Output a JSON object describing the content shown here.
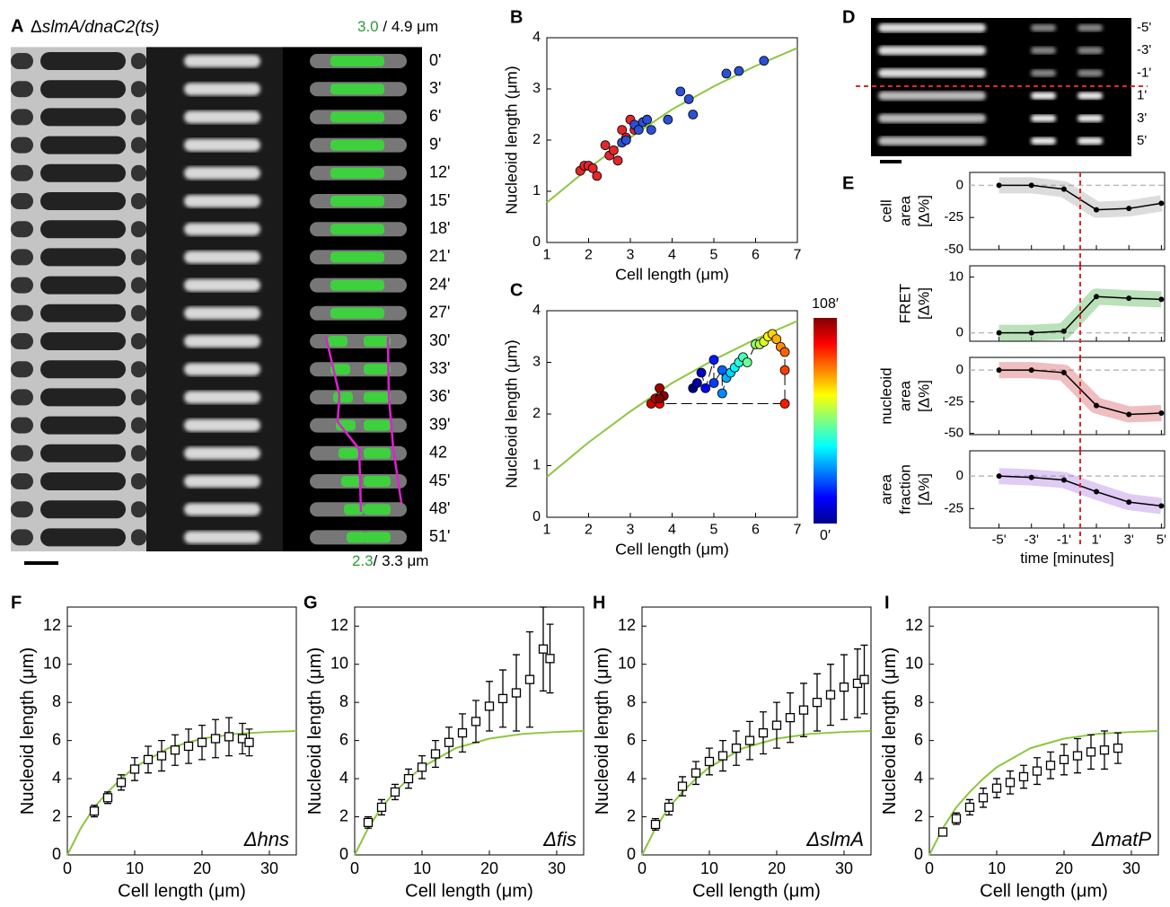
{
  "panel_a": {
    "label": "A",
    "title_prefix": "Δ",
    "title_name": "slmA/dnaC2(ts)",
    "top_green": "3.0",
    "top_rest": "/ 4.9 μm",
    "bottom_green": "2.3",
    "bottom_rest": "/ 3.3 μm",
    "times": [
      "0'",
      "3'",
      "6'",
      "9'",
      "12'",
      "15'",
      "18'",
      "21'",
      "24'",
      "27'",
      "30'",
      "33'",
      "36'",
      "39'",
      "42",
      "45'",
      "48'",
      "51'"
    ]
  },
  "panel_d": {
    "label": "D",
    "times": [
      "-5'",
      "-3'",
      "-1'",
      "1'",
      "3'",
      "5'"
    ]
  },
  "chart_data": [
    {
      "label": "B",
      "type": "scatter",
      "xlabel": "Cell length (μm)",
      "ylabel": "Nucleoid length (μm)",
      "xlim": [
        1,
        7
      ],
      "ylim": [
        0,
        4
      ],
      "xticks": [
        1,
        2,
        3,
        4,
        5,
        6,
        7
      ],
      "yticks": [
        0,
        1,
        2,
        3,
        4
      ],
      "series": [
        {
          "color": "#e3262b",
          "x": [
            1.8,
            1.9,
            2.0,
            2.1,
            2.2,
            2.4,
            2.5,
            2.6,
            2.7,
            2.8,
            2.9,
            3.0,
            3.1
          ],
          "y": [
            1.4,
            1.5,
            1.5,
            1.45,
            1.3,
            1.9,
            1.7,
            1.8,
            1.6,
            2.2,
            2.05,
            2.4,
            2.2
          ]
        },
        {
          "color": "#2b4fd6",
          "x": [
            2.8,
            2.9,
            3.1,
            3.2,
            3.3,
            3.4,
            3.5,
            3.9,
            4.2,
            4.4,
            4.5,
            5.3,
            5.6,
            6.2
          ],
          "y": [
            1.95,
            2.0,
            2.3,
            2.2,
            2.35,
            2.4,
            2.2,
            2.4,
            2.95,
            2.8,
            2.5,
            3.3,
            3.35,
            3.55
          ]
        }
      ],
      "curve": {
        "color": "#8dc63f",
        "x": [
          1,
          2,
          3,
          4,
          5,
          6,
          7
        ],
        "y": [
          0.78,
          1.45,
          2.05,
          2.6,
          3.05,
          3.45,
          3.8
        ]
      }
    },
    {
      "label": "C",
      "type": "colorscatter",
      "xlabel": "Cell length (μm)",
      "ylabel": "Nucleoid length (μm)",
      "xlim": [
        1,
        7
      ],
      "ylim": [
        0,
        4
      ],
      "xticks": [
        1,
        2,
        3,
        4,
        5,
        6,
        7
      ],
      "yticks": [
        0,
        1,
        2,
        3,
        4
      ],
      "clim": [
        0,
        108
      ],
      "colorbar_max_label": "108′",
      "colorbar_min_label": "0′",
      "x": [
        4.5,
        4.6,
        4.7,
        4.8,
        5.0,
        5.0,
        5.2,
        5.2,
        5.3,
        5.4,
        5.5,
        5.6,
        5.7,
        5.8,
        6.0,
        6.1,
        6.2,
        6.3,
        6.4,
        6.5,
        6.6,
        6.7,
        6.7,
        6.7,
        3.7,
        3.5,
        3.6,
        3.7,
        3.8,
        3.7
      ],
      "y": [
        2.5,
        2.6,
        2.8,
        2.5,
        3.05,
        2.6,
        2.85,
        2.4,
        2.7,
        2.8,
        2.9,
        3.0,
        3.1,
        3.0,
        3.35,
        3.35,
        3.4,
        3.5,
        3.55,
        3.45,
        3.3,
        3.2,
        2.85,
        2.2,
        2.2,
        2.2,
        2.3,
        2.5,
        2.35,
        2.3
      ],
      "t": [
        0,
        4,
        8,
        12,
        16,
        20,
        24,
        28,
        32,
        36,
        40,
        44,
        48,
        52,
        56,
        60,
        64,
        68,
        72,
        76,
        80,
        84,
        88,
        92,
        96,
        100,
        102,
        104,
        106,
        108
      ],
      "curve": {
        "color": "#8dc63f",
        "x": [
          1,
          2,
          3,
          4,
          5,
          6,
          7
        ],
        "y": [
          0.78,
          1.45,
          2.05,
          2.6,
          3.05,
          3.45,
          3.8
        ]
      }
    },
    {
      "label": "E",
      "type": "line",
      "ylabel": [
        "cell",
        "area",
        "[Δ%]"
      ],
      "x": [
        -5,
        -3,
        -1,
        1,
        3,
        5
      ],
      "values": [
        0,
        0,
        -3,
        -19,
        -18,
        -14
      ],
      "color": "#000000",
      "band_color": "#9a9a9a",
      "xlim": [
        -6.8,
        5.2
      ],
      "ylim": [
        -50,
        10
      ],
      "yticks": [
        -50,
        -25,
        0
      ]
    },
    {
      "type": "line",
      "ylabel": [
        "FRET",
        "[Δ%]"
      ],
      "x": [
        -5,
        -3,
        -1,
        1,
        3,
        5
      ],
      "values": [
        0,
        0,
        0.3,
        6.5,
        6.2,
        6
      ],
      "color": "#000000",
      "band_color": "#3aa83a",
      "xlim": [
        -6.8,
        5.2
      ],
      "ylim": [
        -1.5,
        12
      ],
      "yticks": [
        0,
        10
      ]
    },
    {
      "type": "line",
      "ylabel": [
        "nucleoid",
        "area",
        "[Δ%]"
      ],
      "x": [
        -5,
        -3,
        -1,
        1,
        3,
        5
      ],
      "values": [
        0,
        0,
        -2,
        -28,
        -35,
        -34
      ],
      "color": "#000000",
      "band_color": "#d0454a",
      "xlim": [
        -6.8,
        5.2
      ],
      "ylim": [
        -51,
        10
      ],
      "yticks": [
        -50,
        -25,
        0
      ]
    },
    {
      "type": "line",
      "ylabel": [
        "area",
        "fraction",
        "[Δ%]"
      ],
      "x": [
        -5,
        -3,
        -1,
        1,
        3,
        5
      ],
      "values": [
        0,
        -1,
        -3,
        -12,
        -20,
        -23
      ],
      "color": "#000000",
      "band_color": "#a46be0",
      "xlim": [
        -6.8,
        5.2
      ],
      "ylim": [
        -40,
        19.5
      ],
      "yticks": [
        -25,
        0
      ],
      "xticks": [
        {
          "value": -5,
          "label": "-5'"
        },
        {
          "value": -3,
          "label": "-3'"
        },
        {
          "value": -1,
          "label": "-1'"
        },
        {
          "value": 1,
          "label": "1'"
        },
        {
          "value": 3,
          "label": "3'"
        },
        {
          "value": 5,
          "label": "5'"
        }
      ],
      "xlabel": "time [minutes]"
    },
    {
      "label": "F",
      "type": "errorbar",
      "annotation": "Δhns",
      "xlabel": "Cell length (μm)",
      "ylabel": "Nucleoid length (μm)",
      "xlim": [
        0,
        34
      ],
      "ylim": [
        0,
        13
      ],
      "xticks": [
        0,
        10,
        20,
        30
      ],
      "yticks": [
        0,
        2,
        4,
        6,
        8,
        10,
        12
      ],
      "x": [
        4,
        6,
        8,
        10,
        12,
        14,
        16,
        18,
        20,
        22,
        24,
        26,
        27
      ],
      "values": [
        2.3,
        3.0,
        3.8,
        4.5,
        5.0,
        5.2,
        5.5,
        5.7,
        5.9,
        6.1,
        6.2,
        6.1,
        5.9
      ],
      "errors": [
        0.3,
        0.3,
        0.4,
        0.6,
        0.7,
        0.8,
        0.8,
        0.9,
        0.9,
        1.0,
        1.0,
        0.8,
        0.7
      ],
      "curve": {
        "color": "#8dc63f",
        "x": [
          0,
          2,
          4,
          6,
          8,
          10,
          15,
          20,
          25,
          30,
          34
        ],
        "y": [
          0,
          1.4,
          2.5,
          3.3,
          4.0,
          4.6,
          5.6,
          6.1,
          6.35,
          6.45,
          6.5
        ]
      }
    },
    {
      "label": "G",
      "type": "errorbar",
      "annotation": "Δfis",
      "xlabel": "Cell length (μm)",
      "ylabel": "Nucleoid length (μm)",
      "xlim": [
        0,
        34
      ],
      "ylim": [
        0,
        13
      ],
      "xticks": [
        0,
        10,
        20,
        30
      ],
      "yticks": [
        0,
        2,
        4,
        6,
        8,
        10,
        12
      ],
      "x": [
        2,
        4,
        6,
        8,
        10,
        12,
        14,
        16,
        18,
        20,
        22,
        24,
        26,
        28,
        29
      ],
      "values": [
        1.7,
        2.5,
        3.3,
        4.0,
        4.6,
        5.3,
        5.9,
        6.4,
        7.0,
        7.8,
        8.2,
        8.5,
        9.2,
        10.8,
        10.3
      ],
      "errors": [
        0.3,
        0.4,
        0.4,
        0.5,
        0.6,
        0.7,
        0.8,
        1.0,
        1.1,
        1.3,
        1.5,
        2.0,
        2.5,
        2.2,
        1.8
      ],
      "curve": {
        "color": "#8dc63f",
        "x": [
          0,
          2,
          4,
          6,
          8,
          10,
          15,
          20,
          25,
          30,
          34
        ],
        "y": [
          0,
          1.4,
          2.5,
          3.3,
          4.0,
          4.6,
          5.6,
          6.1,
          6.35,
          6.45,
          6.5
        ]
      }
    },
    {
      "label": "H",
      "type": "errorbar",
      "annotation": "ΔslmA",
      "xlabel": "Cell length (μm)",
      "ylabel": "Nucleoid length (μm)",
      "xlim": [
        0,
        34
      ],
      "ylim": [
        0,
        13
      ],
      "xticks": [
        0,
        10,
        20,
        30
      ],
      "yticks": [
        0,
        2,
        4,
        6,
        8,
        10,
        12
      ],
      "x": [
        2,
        4,
        6,
        8,
        10,
        12,
        14,
        16,
        18,
        20,
        22,
        24,
        26,
        28,
        30,
        32,
        33
      ],
      "values": [
        1.6,
        2.5,
        3.6,
        4.3,
        4.9,
        5.2,
        5.6,
        6.0,
        6.4,
        6.8,
        7.2,
        7.6,
        8.0,
        8.4,
        8.8,
        9.0,
        9.2
      ],
      "errors": [
        0.3,
        0.4,
        0.5,
        0.6,
        0.7,
        0.8,
        0.9,
        1.0,
        1.1,
        1.2,
        1.3,
        1.4,
        1.5,
        1.6,
        1.7,
        1.8,
        1.8
      ],
      "curve": {
        "color": "#8dc63f",
        "x": [
          0,
          2,
          4,
          6,
          8,
          10,
          15,
          20,
          25,
          30,
          34
        ],
        "y": [
          0,
          1.4,
          2.5,
          3.3,
          4.0,
          4.6,
          5.6,
          6.1,
          6.35,
          6.45,
          6.5
        ]
      }
    },
    {
      "label": "I",
      "type": "errorbar",
      "annotation": "ΔmatP",
      "xlabel": "Cell length (μm)",
      "ylabel": "Nucleoid length (μm)",
      "xlim": [
        0,
        34
      ],
      "ylim": [
        0,
        13
      ],
      "xticks": [
        0,
        10,
        20,
        30
      ],
      "yticks": [
        0,
        2,
        4,
        6,
        8,
        10,
        12
      ],
      "x": [
        2,
        4,
        6,
        8,
        10,
        12,
        14,
        16,
        18,
        20,
        22,
        24,
        26,
        28
      ],
      "values": [
        1.2,
        1.9,
        2.5,
        3.0,
        3.5,
        3.8,
        4.1,
        4.4,
        4.7,
        5.0,
        5.2,
        5.4,
        5.5,
        5.6
      ],
      "errors": [
        0.2,
        0.3,
        0.4,
        0.5,
        0.5,
        0.6,
        0.6,
        0.7,
        0.7,
        0.8,
        0.9,
        0.9,
        1.0,
        0.8
      ],
      "curve": {
        "color": "#8dc63f",
        "x": [
          0,
          2,
          4,
          6,
          8,
          10,
          15,
          20,
          25,
          30,
          34
        ],
        "y": [
          0,
          1.4,
          2.5,
          3.3,
          4.0,
          4.6,
          5.6,
          6.1,
          6.35,
          6.45,
          6.5
        ]
      }
    }
  ]
}
